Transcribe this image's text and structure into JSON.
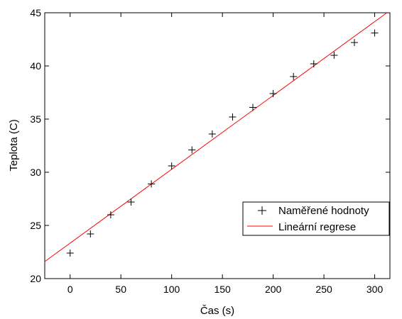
{
  "chart_data": {
    "type": "scatter",
    "xlabel": "Čas (s)",
    "ylabel": "Teplota (C)",
    "xlim": [
      -25,
      315
    ],
    "ylim": [
      20,
      45
    ],
    "x_ticks": [
      0,
      50,
      100,
      150,
      200,
      250,
      300
    ],
    "y_ticks": [
      20,
      25,
      30,
      35,
      40,
      45
    ],
    "grid": false,
    "legend_position": "right",
    "series": [
      {
        "name": "Naměřené hodnoty",
        "kind": "scatter",
        "marker": "plus",
        "color": "#000000",
        "points": [
          {
            "x": 0,
            "y": 22.4
          },
          {
            "x": 20,
            "y": 24.2
          },
          {
            "x": 40,
            "y": 26.0
          },
          {
            "x": 60,
            "y": 27.2
          },
          {
            "x": 80,
            "y": 28.9
          },
          {
            "x": 100,
            "y": 30.6
          },
          {
            "x": 120,
            "y": 32.1
          },
          {
            "x": 140,
            "y": 33.6
          },
          {
            "x": 160,
            "y": 35.2
          },
          {
            "x": 180,
            "y": 36.1
          },
          {
            "x": 200,
            "y": 37.4
          },
          {
            "x": 220,
            "y": 39.0
          },
          {
            "x": 240,
            "y": 40.2
          },
          {
            "x": 260,
            "y": 41.0
          },
          {
            "x": 280,
            "y": 42.2
          },
          {
            "x": 300,
            "y": 43.1
          }
        ]
      },
      {
        "name": "Lineární regrese",
        "kind": "line",
        "color": "#ff0000",
        "points": [
          {
            "x": -25,
            "y": 21.6
          },
          {
            "x": 312,
            "y": 45.0
          }
        ]
      }
    ]
  }
}
